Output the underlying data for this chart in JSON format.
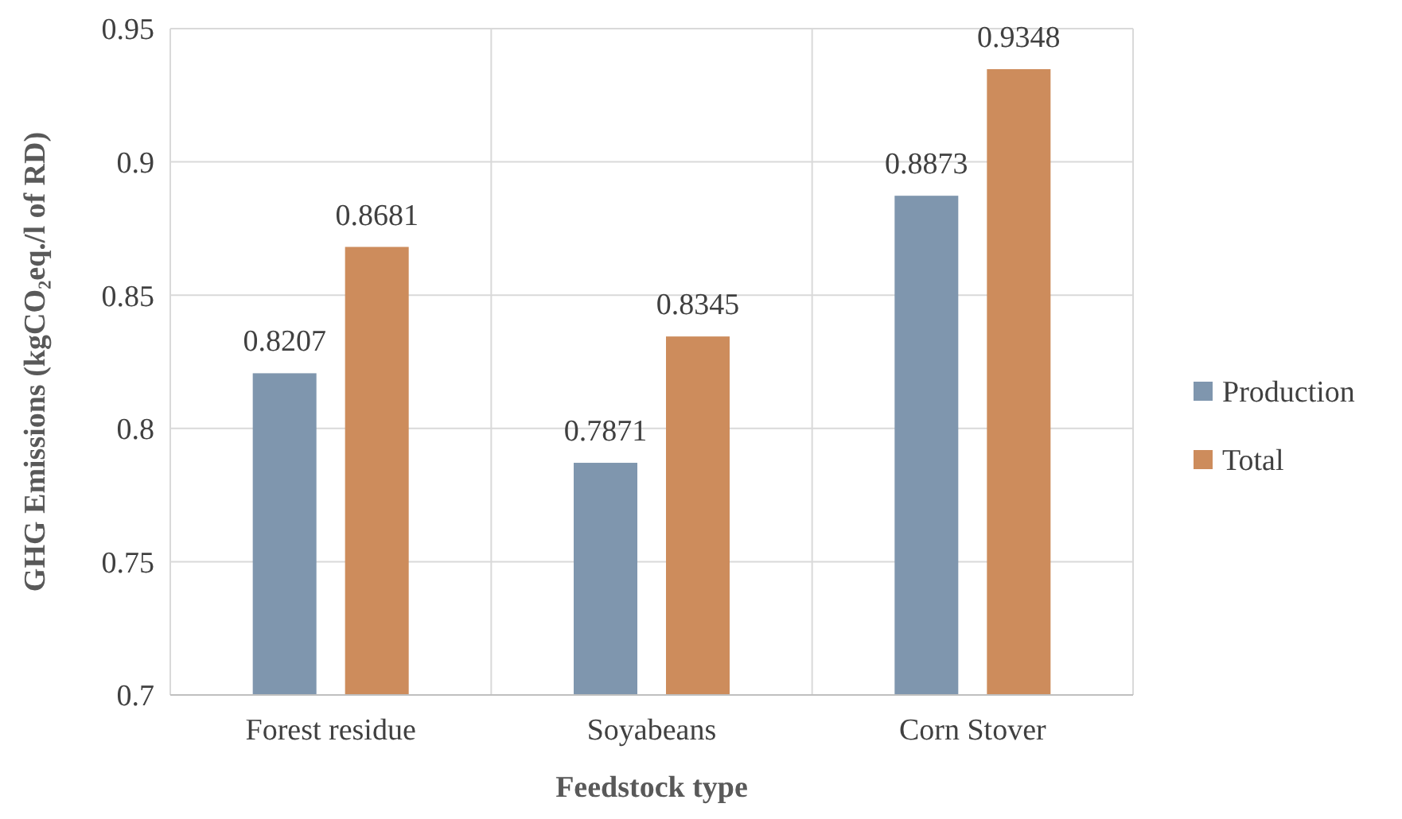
{
  "chart_data": {
    "type": "bar",
    "xlabel": "Feedstock type",
    "ylabel": "GHG Emissions (kgCO₂eq./l of RD)",
    "categories": [
      "Forest residue",
      "Soyabeans",
      "Corn Stover"
    ],
    "series": [
      {
        "name": "Production",
        "color": "#7f96ae",
        "values": [
          0.8207,
          0.7871,
          0.8873
        ]
      },
      {
        "name": "Total",
        "color": "#cd8c5c",
        "values": [
          0.8681,
          0.8345,
          0.9348
        ]
      }
    ],
    "ylim": [
      0.7,
      0.95
    ],
    "yticks": [
      0.7,
      0.75,
      0.8,
      0.85,
      0.9,
      0.95
    ],
    "grid": true,
    "legend": "right",
    "data_labels": true
  }
}
